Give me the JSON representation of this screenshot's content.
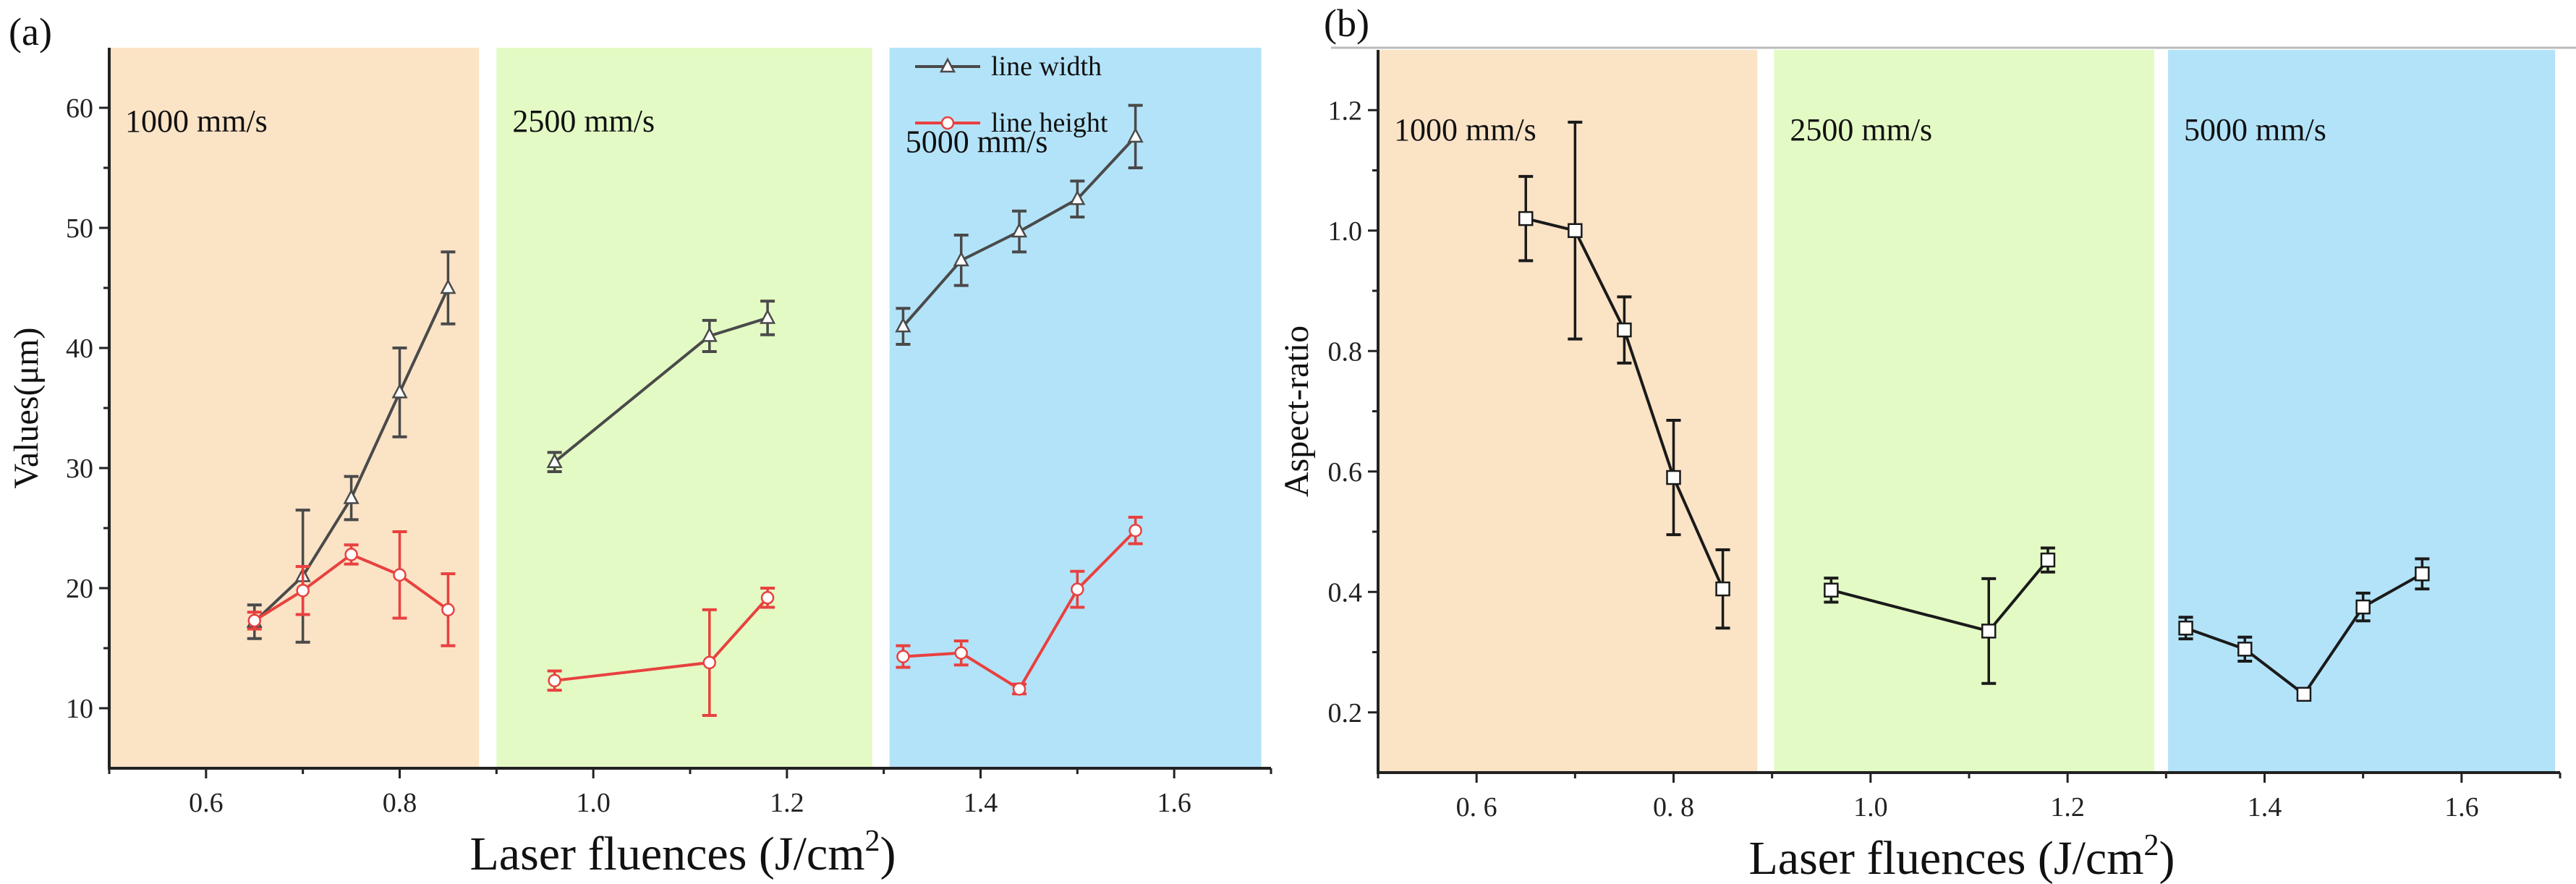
{
  "chart_data": [
    {
      "type": "line",
      "panel_label": "(a)",
      "xlabel": "Laser fluences (J/cm",
      "xlabel_sup": "2",
      "xlabel_end": ")",
      "ylabel": "Values(μm)",
      "xlim": [
        0.5,
        1.7
      ],
      "ylim": [
        5,
        65
      ],
      "xticks": [
        0.6,
        0.8,
        1.0,
        1.2,
        1.4,
        1.6
      ],
      "xtick_labels": [
        "0.6",
        "0.8",
        "1.0",
        "1.2",
        "1.4",
        "1.6"
      ],
      "yticks": [
        10,
        20,
        30,
        40,
        50,
        60
      ],
      "ytick_labels": [
        "10",
        "20",
        "30",
        "40",
        "50",
        "60"
      ],
      "grid": false,
      "legend_placement": "top-right",
      "regions": [
        {
          "label": "1000 mm/s",
          "range": [
            0.5,
            0.882
          ],
          "color": "#fbe3c6"
        },
        {
          "label": "2500 mm/s",
          "range": [
            0.9,
            1.288
          ],
          "color": "#e3fac4"
        },
        {
          "label": "5000 mm/s",
          "range": [
            1.306,
            1.69
          ],
          "color": "#b3e3f9"
        }
      ],
      "series": [
        {
          "name": "line width",
          "color": "#4a4a4a",
          "marker": "triangle",
          "segments": [
            {
              "x": [
                0.65,
                0.7,
                0.75,
                0.8,
                0.85
              ],
              "y": [
                17.2,
                21.0,
                27.5,
                36.3,
                45.0
              ],
              "err": [
                1.4,
                5.5,
                1.8,
                3.7,
                3.0
              ]
            },
            {
              "x": [
                0.96,
                1.12,
                1.18
              ],
              "y": [
                30.5,
                41.0,
                42.5
              ],
              "err": [
                0.8,
                1.3,
                1.4
              ]
            },
            {
              "x": [
                1.32,
                1.38,
                1.44,
                1.5,
                1.56
              ],
              "y": [
                41.8,
                47.3,
                49.7,
                52.4,
                57.6
              ],
              "err": [
                1.5,
                2.1,
                1.7,
                1.5,
                2.6
              ]
            }
          ]
        },
        {
          "name": "line height",
          "color": "#e8413f",
          "marker": "circle",
          "segments": [
            {
              "x": [
                0.65,
                0.7,
                0.75,
                0.8,
                0.85
              ],
              "y": [
                17.3,
                19.8,
                22.8,
                21.1,
                18.2
              ],
              "err": [
                0.7,
                2.0,
                0.8,
                3.6,
                3.0
              ]
            },
            {
              "x": [
                0.96,
                1.12,
                1.18
              ],
              "y": [
                12.3,
                13.8,
                19.2
              ],
              "err": [
                0.8,
                4.4,
                0.8
              ]
            },
            {
              "x": [
                1.32,
                1.38,
                1.44,
                1.5,
                1.56
              ],
              "y": [
                14.3,
                14.6,
                11.6,
                19.9,
                24.8
              ],
              "err": [
                0.9,
                1.0,
                0.4,
                1.5,
                1.1
              ]
            }
          ]
        }
      ]
    },
    {
      "type": "line",
      "panel_label": "(b)",
      "xlabel": "Laser fluences (J/cm",
      "xlabel_sup": "2",
      "xlabel_end": ")",
      "ylabel": "Aspect-ratio",
      "xlim": [
        0.5,
        1.7
      ],
      "ylim": [
        0.1,
        1.3
      ],
      "xticks": [
        0.6,
        0.8,
        1.0,
        1.2,
        1.4,
        1.6
      ],
      "xtick_labels": [
        "0. 6",
        "0. 8",
        "1.0",
        "1.2",
        "1.4",
        "1.6"
      ],
      "yticks": [
        0.2,
        0.4,
        0.6,
        0.8,
        1.0,
        1.2
      ],
      "ytick_labels": [
        "0.2",
        "0.4",
        "0.6",
        "0.8",
        "1.0",
        "1.2"
      ],
      "grid": false,
      "regions": [
        {
          "label": "1000 mm/s",
          "range": [
            0.5,
            0.885
          ],
          "color": "#fbe3c6"
        },
        {
          "label": "2500 mm/s",
          "range": [
            0.902,
            1.288
          ],
          "color": "#e3fac4"
        },
        {
          "label": "5000 mm/s",
          "range": [
            1.302,
            1.695
          ],
          "color": "#b3e3f9"
        }
      ],
      "series": [
        {
          "name": "aspect ratio",
          "color": "#1a1a1a",
          "marker": "square",
          "segments": [
            {
              "x": [
                0.65,
                0.7,
                0.75,
                0.8,
                0.85
              ],
              "y": [
                1.02,
                1.0,
                0.835,
                0.59,
                0.405
              ],
              "err": [
                0.07,
                0.18,
                0.055,
                0.095,
                0.065
              ]
            },
            {
              "x": [
                0.96,
                1.12,
                1.18
              ],
              "y": [
                0.403,
                0.335,
                0.453
              ],
              "err": [
                0.02,
                0.087,
                0.02
              ]
            },
            {
              "x": [
                1.32,
                1.38,
                1.44,
                1.5,
                1.56
              ],
              "y": [
                0.34,
                0.305,
                0.23,
                0.375,
                0.43
              ],
              "err": [
                0.018,
                0.02,
                0.007,
                0.023,
                0.025
              ]
            }
          ]
        }
      ]
    }
  ]
}
